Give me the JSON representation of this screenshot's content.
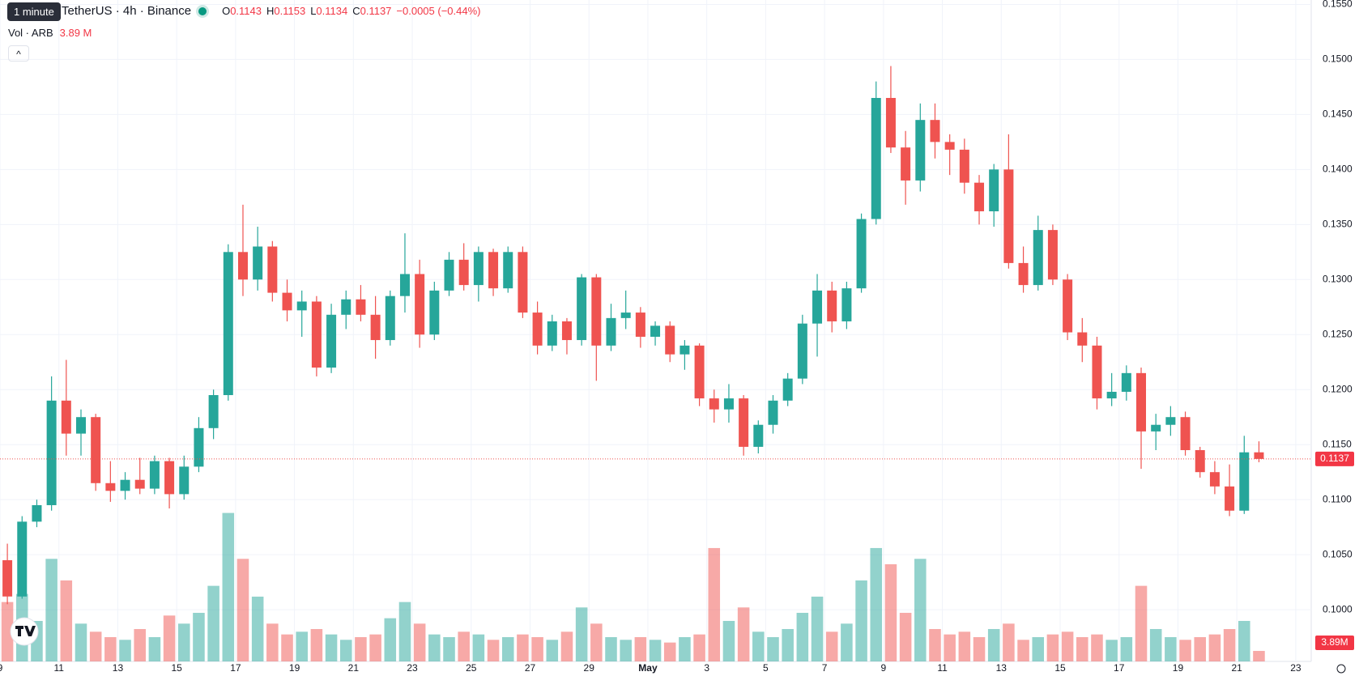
{
  "header": {
    "tooltip": "1 minute",
    "symbol": "TetherUS · 4h · Binance",
    "ohlc": [
      {
        "key": "O",
        "value": "0.1143"
      },
      {
        "key": "H",
        "value": "0.1153"
      },
      {
        "key": "L",
        "value": "0.1134"
      },
      {
        "key": "C",
        "value": "0.1137"
      }
    ],
    "change": "−0.0005 (−0.44%)",
    "volume_title": "Vol · ARB",
    "volume_value": "3.89 M"
  },
  "chart_data": {
    "type": "candlestick",
    "up_color": "#26a69a",
    "down_color": "#ef5350",
    "grid": true,
    "open": [
      0.1045,
      0.1012,
      0.108,
      0.1095,
      0.119,
      0.116,
      0.1175,
      0.1115,
      0.1108,
      0.1118,
      0.111,
      0.1135,
      0.1105,
      0.113,
      0.1165,
      0.1195,
      0.1325,
      0.13,
      0.133,
      0.1288,
      0.1272,
      0.128,
      0.122,
      0.1268,
      0.1282,
      0.1268,
      0.1245,
      0.1285,
      0.1305,
      0.125,
      0.129,
      0.1318,
      0.1295,
      0.1325,
      0.1292,
      0.1325,
      0.127,
      0.124,
      0.1262,
      0.1245,
      0.1302,
      0.124,
      0.1265,
      0.127,
      0.1248,
      0.1258,
      0.1232,
      0.124,
      0.1192,
      0.1182,
      0.1192,
      0.1148,
      0.1168,
      0.119,
      0.121,
      0.126,
      0.129,
      0.1262,
      0.1292,
      0.1355,
      0.1465,
      0.142,
      0.139,
      0.1445,
      0.1425,
      0.1418,
      0.1388,
      0.1362,
      0.14,
      0.1315,
      0.1295,
      0.1345,
      0.13,
      0.1252,
      0.124,
      0.1192,
      0.1198,
      0.1215,
      0.1162,
      0.1168,
      0.1175,
      0.1145,
      0.1125,
      0.1112,
      0.109,
      0.1143
    ],
    "high": [
      0.106,
      0.1085,
      0.11,
      0.1212,
      0.1227,
      0.1182,
      0.1178,
      0.1135,
      0.1125,
      0.1138,
      0.114,
      0.1138,
      0.114,
      0.1175,
      0.12,
      0.1332,
      0.1368,
      0.1348,
      0.1335,
      0.13,
      0.129,
      0.1285,
      0.1278,
      0.129,
      0.1295,
      0.1285,
      0.129,
      0.1342,
      0.1318,
      0.1298,
      0.1325,
      0.1333,
      0.133,
      0.1328,
      0.133,
      0.133,
      0.128,
      0.1268,
      0.1265,
      0.1305,
      0.1305,
      0.1278,
      0.129,
      0.1275,
      0.1262,
      0.1262,
      0.1245,
      0.1242,
      0.12,
      0.1205,
      0.1195,
      0.1172,
      0.1195,
      0.1215,
      0.1268,
      0.1305,
      0.1298,
      0.1298,
      0.136,
      0.148,
      0.1494,
      0.1435,
      0.146,
      0.146,
      0.1432,
      0.1428,
      0.1395,
      0.1405,
      0.1432,
      0.133,
      0.1358,
      0.135,
      0.1305,
      0.1265,
      0.1248,
      0.1215,
      0.1222,
      0.122,
      0.1178,
      0.1185,
      0.118,
      0.1148,
      0.1135,
      0.1132,
      0.1158,
      0.1153
    ],
    "low": [
      0.1005,
      0.101,
      0.1075,
      0.109,
      0.114,
      0.114,
      0.1108,
      0.1098,
      0.11,
      0.1105,
      0.1105,
      0.1092,
      0.11,
      0.1125,
      0.1155,
      0.119,
      0.1285,
      0.129,
      0.128,
      0.1262,
      0.1248,
      0.1212,
      0.1215,
      0.1255,
      0.1262,
      0.1228,
      0.124,
      0.127,
      0.1238,
      0.1245,
      0.1285,
      0.129,
      0.128,
      0.1285,
      0.1288,
      0.1265,
      0.1232,
      0.1235,
      0.1232,
      0.124,
      0.1208,
      0.1235,
      0.1255,
      0.1238,
      0.124,
      0.1225,
      0.1218,
      0.1185,
      0.117,
      0.117,
      0.114,
      0.1142,
      0.116,
      0.1185,
      0.1205,
      0.123,
      0.1252,
      0.1255,
      0.1288,
      0.135,
      0.1415,
      0.1368,
      0.138,
      0.141,
      0.1395,
      0.1378,
      0.135,
      0.1348,
      0.131,
      0.1288,
      0.129,
      0.1295,
      0.1245,
      0.1225,
      0.1182,
      0.1185,
      0.119,
      0.1128,
      0.1145,
      0.1158,
      0.114,
      0.112,
      0.1105,
      0.1085,
      0.1087,
      0.1134
    ],
    "close": [
      0.1012,
      0.108,
      0.1095,
      0.119,
      0.116,
      0.1175,
      0.1115,
      0.1108,
      0.1118,
      0.111,
      0.1135,
      0.1105,
      0.113,
      0.1165,
      0.1195,
      0.1325,
      0.13,
      0.133,
      0.1288,
      0.1272,
      0.128,
      0.122,
      0.1268,
      0.1282,
      0.1268,
      0.1245,
      0.1285,
      0.1305,
      0.125,
      0.129,
      0.1318,
      0.1295,
      0.1325,
      0.1292,
      0.1325,
      0.127,
      0.124,
      0.1262,
      0.1245,
      0.1302,
      0.124,
      0.1265,
      0.127,
      0.1248,
      0.1258,
      0.1232,
      0.124,
      0.1192,
      0.1182,
      0.1192,
      0.1148,
      0.1168,
      0.119,
      0.121,
      0.126,
      0.129,
      0.1262,
      0.1292,
      0.1355,
      0.1465,
      0.142,
      0.139,
      0.1445,
      0.1425,
      0.1418,
      0.1388,
      0.1362,
      0.14,
      0.1315,
      0.1295,
      0.1345,
      0.13,
      0.1252,
      0.124,
      0.1192,
      0.1198,
      0.1215,
      0.1162,
      0.1168,
      0.1175,
      0.1145,
      0.1125,
      0.1112,
      0.109,
      0.1143,
      0.1137
    ],
    "volume": [
      22,
      25,
      15,
      38,
      30,
      14,
      11,
      9,
      8,
      12,
      9,
      17,
      14,
      18,
      28,
      55,
      38,
      24,
      14,
      10,
      11,
      12,
      10,
      8,
      9,
      10,
      16,
      22,
      14,
      10,
      9,
      11,
      10,
      8,
      9,
      10,
      9,
      8,
      11,
      20,
      14,
      9,
      8,
      9,
      8,
      7,
      9,
      10,
      42,
      15,
      20,
      11,
      9,
      12,
      18,
      24,
      11,
      14,
      30,
      42,
      36,
      18,
      38,
      12,
      10,
      11,
      9,
      12,
      14,
      8,
      9,
      10,
      11,
      9,
      10,
      8,
      9,
      28,
      12,
      9,
      8,
      9,
      10,
      12,
      15,
      3.89
    ],
    "vol_ylim": [
      0,
      245
    ],
    "xlim": [
      -0.5,
      88.55
    ],
    "xticks": [
      {
        "value": -0.5,
        "label": "9"
      },
      {
        "value": 3.5,
        "label": "11"
      },
      {
        "value": 7.5,
        "label": "13"
      },
      {
        "value": 11.5,
        "label": "15"
      },
      {
        "value": 15.5,
        "label": "17"
      },
      {
        "value": 19.5,
        "label": "19"
      },
      {
        "value": 23.5,
        "label": "21"
      },
      {
        "value": 27.5,
        "label": "23"
      },
      {
        "value": 31.5,
        "label": "25"
      },
      {
        "value": 35.5,
        "label": "27"
      },
      {
        "value": 39.5,
        "label": "29"
      },
      {
        "value": 43.5,
        "label": "May"
      },
      {
        "value": 47.5,
        "label": "3"
      },
      {
        "value": 51.5,
        "label": "5"
      },
      {
        "value": 55.5,
        "label": "7"
      },
      {
        "value": 59.5,
        "label": "9"
      },
      {
        "value": 63.5,
        "label": "11"
      },
      {
        "value": 67.5,
        "label": "13"
      },
      {
        "value": 71.5,
        "label": "15"
      },
      {
        "value": 75.5,
        "label": "17"
      },
      {
        "value": 79.5,
        "label": "19"
      },
      {
        "value": 83.5,
        "label": "21"
      },
      {
        "value": 87.5,
        "label": "23"
      }
    ],
    "ylim": [
      0.0953,
      0.1554
    ],
    "yticks": [
      {
        "value": 0.1,
        "label": "0.1000"
      },
      {
        "value": 0.105,
        "label": "0.1050"
      },
      {
        "value": 0.11,
        "label": "0.1100"
      },
      {
        "value": 0.115,
        "label": "0.1150"
      },
      {
        "value": 0.12,
        "label": "0.1200"
      },
      {
        "value": 0.125,
        "label": "0.1250"
      },
      {
        "value": 0.13,
        "label": "0.1300"
      },
      {
        "value": 0.135,
        "label": "0.1350"
      },
      {
        "value": 0.14,
        "label": "0.1400"
      },
      {
        "value": 0.145,
        "label": "0.1450"
      },
      {
        "value": 0.15,
        "label": "0.1500"
      },
      {
        "value": 0.155,
        "label": "0.1550"
      }
    ],
    "last_price": {
      "value": 0.1137,
      "label": "0.1137"
    },
    "volume_last_label": "3.89M"
  }
}
